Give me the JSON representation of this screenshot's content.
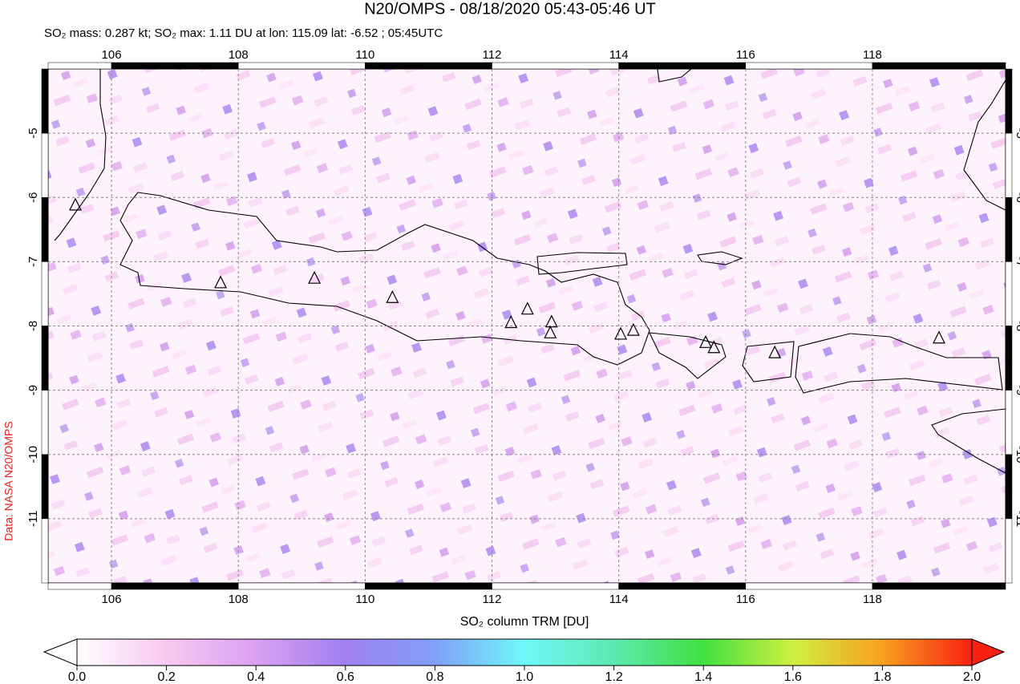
{
  "chart_data": {
    "type": "map",
    "title": "N20/OMPS - 08/18/2020 05:43-05:46 UT",
    "subtitle": "SO₂ mass: 0.287 kt; SO₂ max: 1.11 DU at lon: 115.09 lat: -6.52 ; 05:45UTC",
    "credit": "Data: NASA N20/OMPS",
    "xlim": [
      105,
      120.1
    ],
    "ylim": [
      -12,
      -4
    ],
    "xticks": [
      106,
      108,
      110,
      112,
      114,
      116,
      118
    ],
    "yticks": [
      -5,
      -6,
      -7,
      -8,
      -9,
      -10,
      -11
    ],
    "grid": true,
    "volcanoes": {
      "lon": [
        105.43,
        107.72,
        109.2,
        110.43,
        112.3,
        112.56,
        112.94,
        112.92,
        114.03,
        114.23,
        115.37,
        115.5,
        116.46,
        119.05
      ],
      "lat": [
        -6.12,
        -7.33,
        -7.26,
        -7.56,
        -7.95,
        -7.74,
        -7.94,
        -8.11,
        -8.13,
        -8.07,
        -8.26,
        -8.34,
        -8.42,
        -8.19
      ]
    },
    "colorbar": {
      "label": "SO₂ column TRM [DU]",
      "lim": [
        0,
        2
      ],
      "ticks": [
        {
          "value": 0,
          "label": "0.0"
        },
        {
          "value": 0.2,
          "label": "0.2"
        },
        {
          "value": 0.4,
          "label": "0.4"
        },
        {
          "value": 0.6,
          "label": "0.6"
        },
        {
          "value": 0.8,
          "label": "0.8"
        },
        {
          "value": 1,
          "label": "1.0"
        },
        {
          "value": 1.2,
          "label": "1.2"
        },
        {
          "value": 1.4,
          "label": "1.4"
        },
        {
          "value": 1.6,
          "label": "1.6"
        },
        {
          "value": 1.8,
          "label": "1.8"
        },
        {
          "value": 2,
          "label": "2.0"
        }
      ],
      "colors": [
        "#ffffff",
        "#f8c8f0",
        "#d8a0f0",
        "#a080f0",
        "#80a0f8",
        "#70f8f8",
        "#60e8b0",
        "#40e040",
        "#d0f040",
        "#f8a020",
        "#f82010"
      ]
    }
  }
}
